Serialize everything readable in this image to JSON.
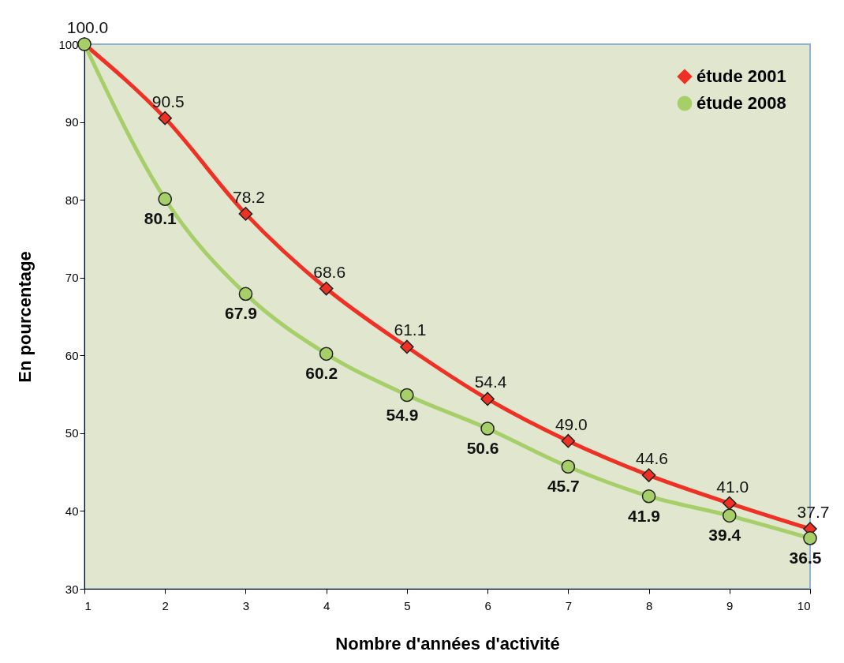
{
  "chart_data": {
    "type": "line",
    "xlabel": "Nombre d'années d'activité",
    "ylabel": "En pourcentage",
    "x": [
      1,
      2,
      3,
      4,
      5,
      6,
      7,
      8,
      9,
      10
    ],
    "series": [
      {
        "name": "étude 2001",
        "color": "#ee3124",
        "marker": "diamond",
        "values": [
          100.0,
          90.5,
          78.2,
          68.6,
          61.1,
          54.4,
          49.0,
          44.6,
          41.0,
          37.7
        ],
        "value_labels": [
          "100.0",
          "90.5",
          "78.2",
          "68.6",
          "61.1",
          "54.4",
          "49.0",
          "44.6",
          "41.0",
          "37.7"
        ]
      },
      {
        "name": "étude 2008",
        "color": "#a6cf6a",
        "marker": "circle",
        "values": [
          100.0,
          80.1,
          67.9,
          60.2,
          54.9,
          50.6,
          45.7,
          41.9,
          39.4,
          36.5
        ],
        "value_labels": [
          null,
          "80.1",
          "67.9",
          "60.2",
          "54.9",
          "50.6",
          "45.7",
          "41.9",
          "39.4",
          "36.5"
        ]
      }
    ],
    "xlim": [
      1,
      10
    ],
    "xticks": [
      1,
      2,
      3,
      4,
      5,
      6,
      7,
      8,
      9,
      10
    ],
    "ylim": [
      30,
      100
    ],
    "yticks": [
      30,
      40,
      50,
      60,
      70,
      80,
      90,
      100
    ],
    "grid": false,
    "legend": "top right",
    "line_style": "solid"
  }
}
